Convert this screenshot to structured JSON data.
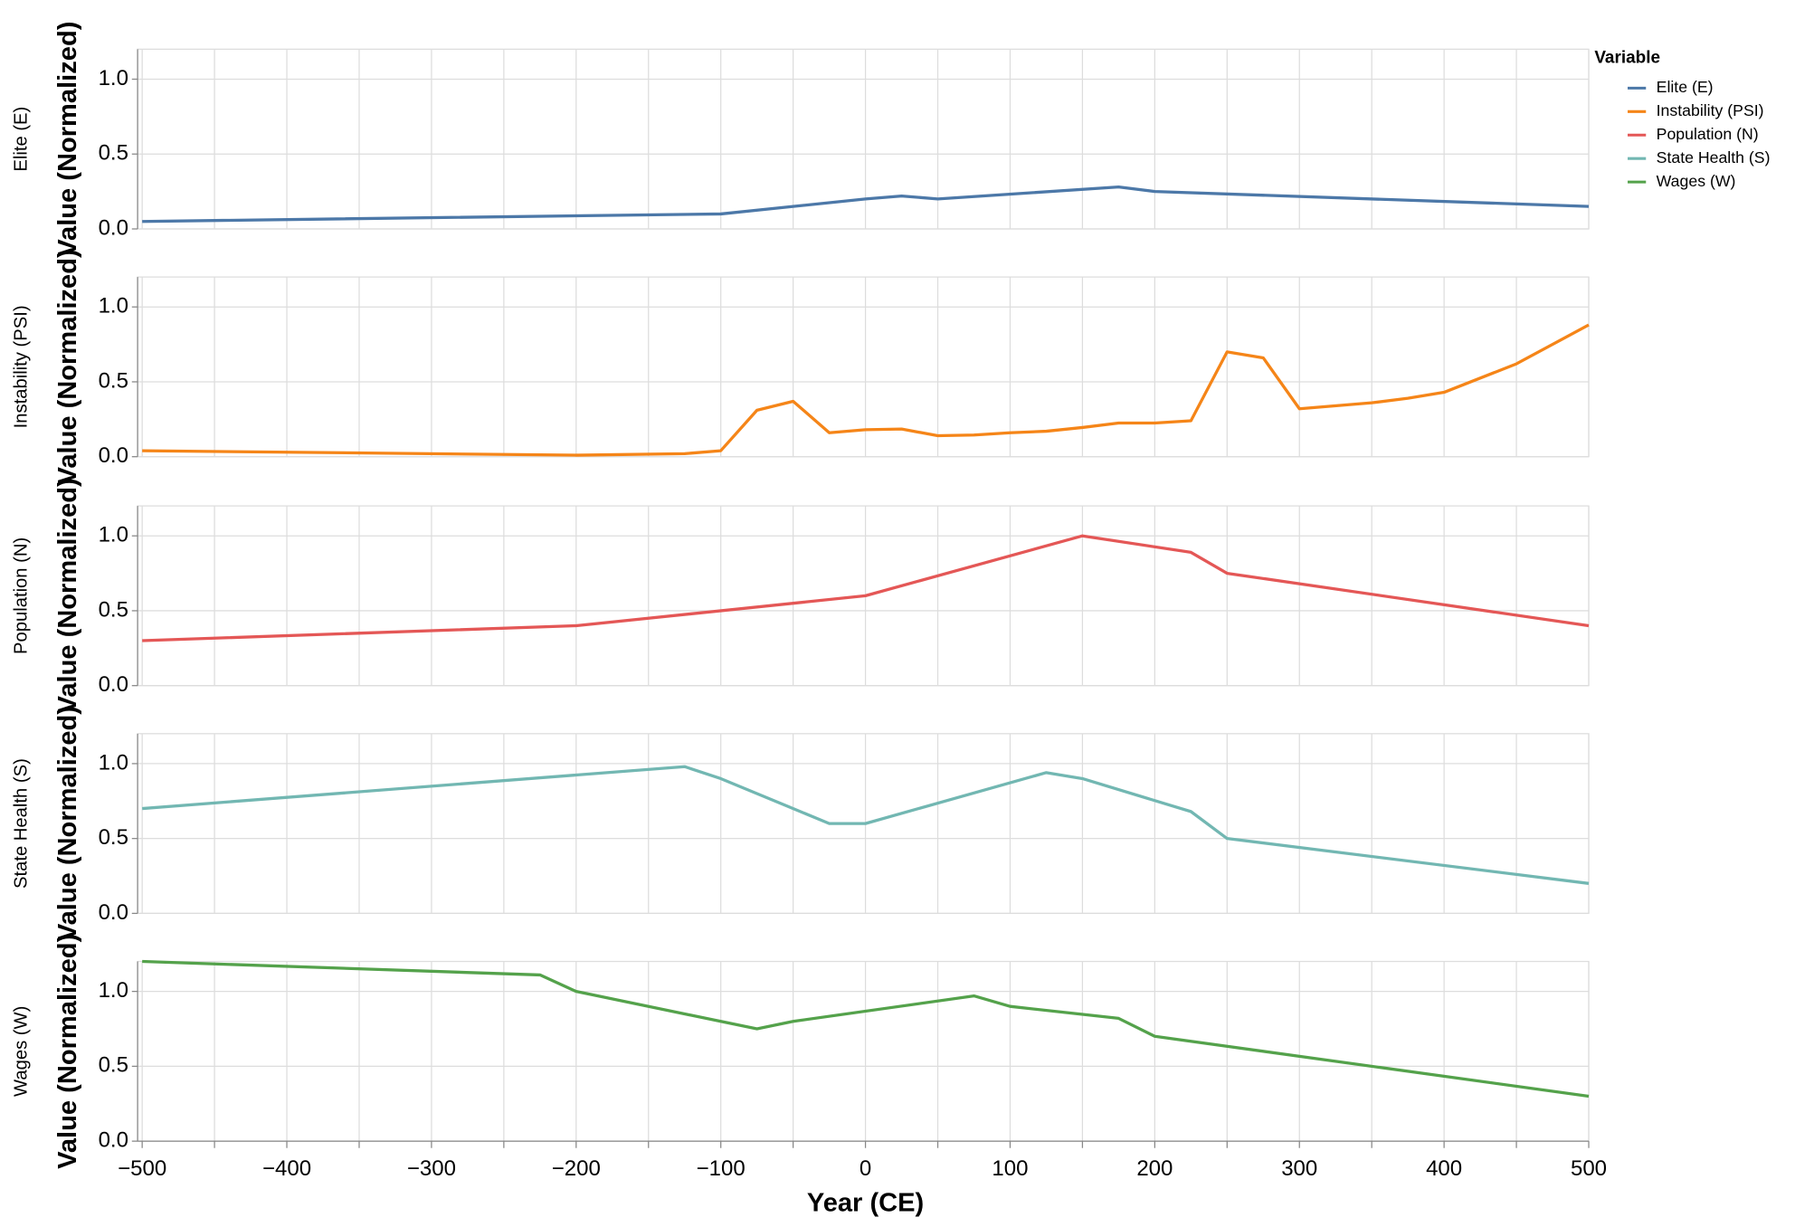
{
  "chart_data": {
    "type": "line",
    "x_label": "Year (CE)",
    "y_label": "Value (Normalized)",
    "legend_title": "Variable",
    "xlim": [
      -500,
      500
    ],
    "xticks": [
      {
        "value": -500,
        "label": "−500"
      },
      {
        "value": -400,
        "label": "−400"
      },
      {
        "value": -300,
        "label": "−300"
      },
      {
        "value": -200,
        "label": "−200"
      },
      {
        "value": -100,
        "label": "−100"
      },
      0,
      100,
      200,
      300,
      400,
      500
    ],
    "xminor_ticks": [
      -450,
      -350,
      -250,
      -150,
      -50,
      50,
      150,
      250,
      350,
      450
    ],
    "ylim": [
      0,
      1.2
    ],
    "yticks": [
      {
        "value": 0,
        "label": "0.0"
      },
      {
        "value": 0.5,
        "label": "0.5"
      },
      {
        "value": 1,
        "label": "1.0"
      }
    ],
    "grid": true,
    "series": [
      {
        "name": "Elite (E)",
        "color": "#4c78a8",
        "x": [
          -500,
          -100,
          0,
          25,
          50,
          175,
          200,
          500
        ],
        "values": [
          0.05,
          0.1,
          0.2,
          0.22,
          0.2,
          0.28,
          0.25,
          0.15
        ]
      },
      {
        "name": "Instability (PSI)",
        "color": "#f58518",
        "x": [
          -500,
          -200,
          -125,
          -100,
          -75,
          -50,
          -25,
          0,
          25,
          50,
          75,
          100,
          125,
          150,
          175,
          200,
          225,
          250,
          275,
          300,
          350,
          375,
          400,
          450,
          475,
          500
        ],
        "values": [
          0.04,
          0.01,
          0.02,
          0.04,
          0.31,
          0.37,
          0.16,
          0.18,
          0.185,
          0.14,
          0.145,
          0.16,
          0.17,
          0.195,
          0.225,
          0.225,
          0.24,
          0.7,
          0.66,
          0.32,
          0.36,
          0.39,
          0.43,
          0.62,
          0.75,
          0.88
        ]
      },
      {
        "name": "Population (N)",
        "color": "#e45756",
        "x": [
          -500,
          -200,
          0,
          150,
          225,
          250,
          500
        ],
        "values": [
          0.3,
          0.4,
          0.6,
          1.0,
          0.89,
          0.75,
          0.4
        ]
      },
      {
        "name": "State Health (S)",
        "color": "#72b7b2",
        "x": [
          -500,
          -125,
          -100,
          -25,
          0,
          125,
          150,
          225,
          250,
          500
        ],
        "values": [
          0.7,
          0.98,
          0.9,
          0.6,
          0.6,
          0.94,
          0.9,
          0.68,
          0.5,
          0.2
        ]
      },
      {
        "name": "Wages (W)",
        "color": "#54a24b",
        "x": [
          -500,
          -225,
          -200,
          -75,
          -50,
          75,
          100,
          175,
          200,
          500
        ],
        "values": [
          1.2,
          1.11,
          1.0,
          0.75,
          0.8,
          0.97,
          0.9,
          0.82,
          0.7,
          0.3
        ]
      }
    ]
  }
}
